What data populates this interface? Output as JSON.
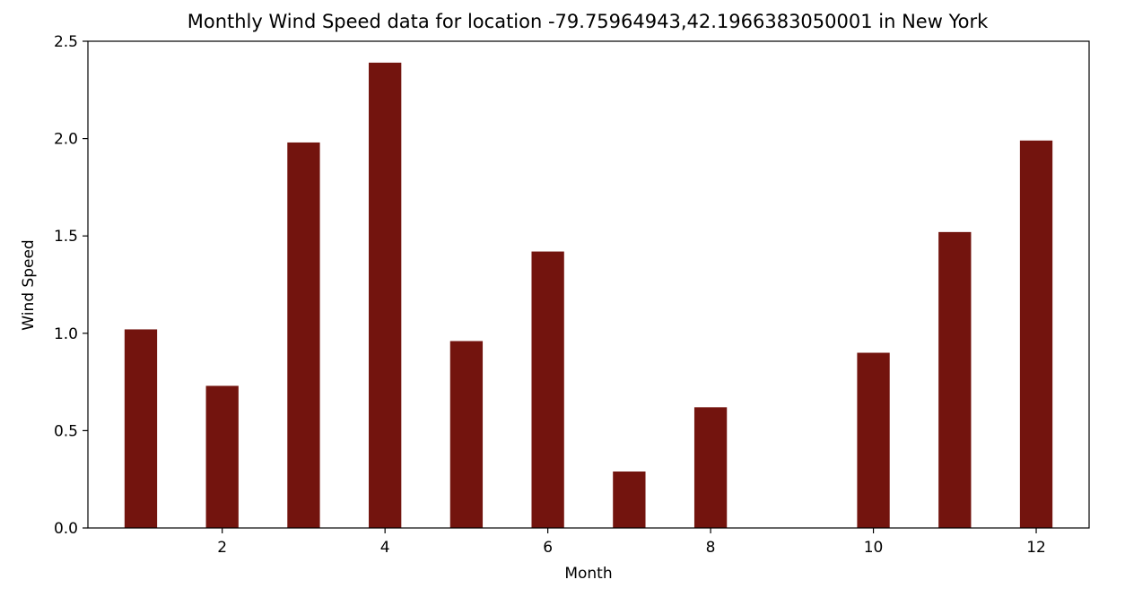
{
  "chart_data": {
    "type": "bar",
    "title": "Monthly Wind Speed data for location -79.75964943,42.1966383050001 in New York",
    "xlabel": "Month",
    "ylabel": "Wind Speed",
    "x": [
      1,
      2,
      3,
      4,
      5,
      6,
      7,
      8,
      9,
      10,
      11,
      12
    ],
    "values": [
      1.02,
      0.73,
      1.98,
      2.39,
      0.96,
      1.42,
      0.29,
      0.62,
      0.0,
      0.9,
      1.52,
      1.99
    ],
    "xlim": [
      0.35,
      12.65
    ],
    "ylim": [
      0,
      2.5
    ],
    "xticks": [
      2,
      4,
      6,
      8,
      10,
      12
    ],
    "yticks": [
      0.0,
      0.5,
      1.0,
      1.5,
      2.0,
      2.5
    ],
    "ytick_labels": [
      "0.0",
      "0.5",
      "1.0",
      "1.5",
      "2.0",
      "2.5"
    ],
    "bar_width": 0.4,
    "bar_color": "#73140e",
    "grid": false,
    "legend": "none"
  }
}
